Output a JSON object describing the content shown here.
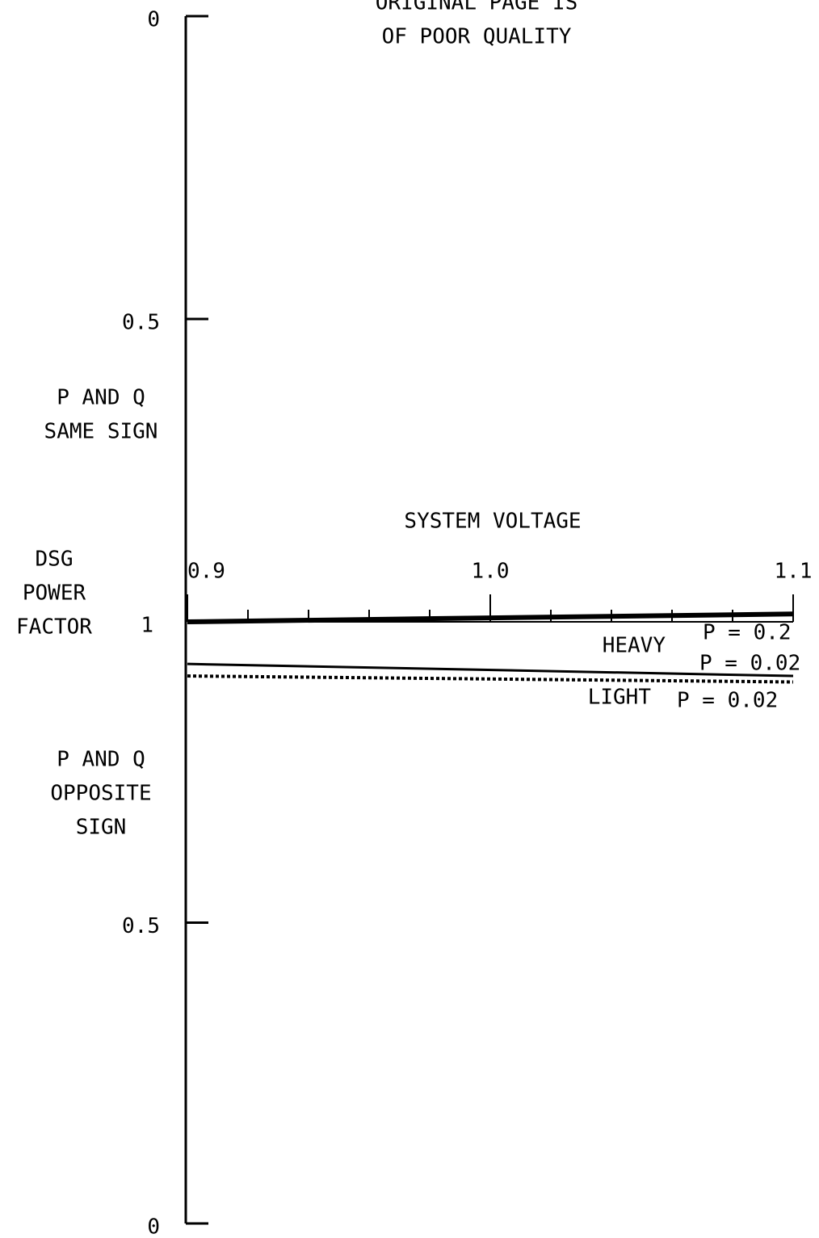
{
  "chart_data": {
    "type": "line",
    "annotations": [
      [
        "ORIGINAL PAGE IS",
        "OF POOR QUALITY"
      ],
      [
        "P AND Q",
        "SAME SIGN"
      ],
      [
        "DSG",
        "POWER",
        "FACTOR"
      ],
      [
        "SYSTEM VOLTAGE"
      ],
      [
        "P AND Q",
        "OPPOSITE",
        "SIGN"
      ],
      [
        "HEAVY"
      ],
      [
        "LIGHT"
      ]
    ],
    "x": [
      0.9,
      1.1
    ],
    "xlim": [
      0.9,
      1.1
    ],
    "xticks": [
      0.9,
      {
        "value": 1.0,
        "label": "1.0"
      },
      1.1
    ],
    "xminorticks": [
      0.92,
      0.94,
      0.96,
      0.98,
      1.02,
      1.04,
      1.06,
      1.08
    ],
    "ylim": [
      0,
      1
    ],
    "yticks": [
      0,
      0.5,
      1
    ],
    "y2lim": [
      1,
      0
    ],
    "y2ticks": [
      0.5,
      0
    ],
    "series": [
      {
        "name": "P = 0.2",
        "color": "#000000",
        "values": [
          1,
          0.987
        ],
        "axis": "y",
        "style": "solid",
        "width": 6
      },
      {
        "name": "P = 0.02",
        "color": "#000000",
        "values": [
          0.93,
          0.91
        ],
        "axis": "y2",
        "style": "solid",
        "width": 3
      },
      {
        "name": "P = 0.02",
        "color": "#000000",
        "values": [
          0.91,
          0.9
        ],
        "axis": "y2",
        "style": "dotted",
        "width": 4
      }
    ]
  }
}
